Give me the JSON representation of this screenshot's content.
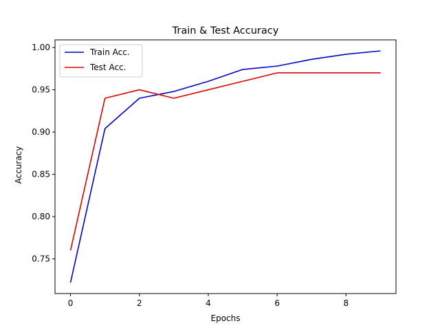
{
  "chart_data": {
    "type": "line",
    "title": "Train & Test Accuracy",
    "xlabel": "Epochs",
    "ylabel": "Accuracy",
    "x": [
      0,
      1,
      2,
      3,
      4,
      5,
      6,
      7,
      8,
      9
    ],
    "xlim": [
      -0.45,
      9.45
    ],
    "ylim": [
      0.709,
      1.009
    ],
    "xticks": [
      0,
      2,
      4,
      6,
      8
    ],
    "xtick_labels": [
      "0",
      "2",
      "4",
      "6",
      "8"
    ],
    "yticks": [
      0.75,
      0.8,
      0.85,
      0.9,
      0.95,
      1.0
    ],
    "ytick_labels": [
      "0.75",
      "0.80",
      "0.85",
      "0.90",
      "0.95",
      "1.00"
    ],
    "grid": false,
    "legend_position": "top-left",
    "series": [
      {
        "name": "Train Acc.",
        "color": "#0000cc",
        "values": [
          0.722,
          0.904,
          0.94,
          0.948,
          0.96,
          0.974,
          0.978,
          0.986,
          0.992,
          0.996
        ]
      },
      {
        "name": "Test Acc.",
        "color": "#dd0000",
        "values": [
          0.76,
          0.94,
          0.95,
          0.94,
          0.95,
          0.96,
          0.97,
          0.97,
          0.97,
          0.97
        ]
      }
    ]
  }
}
